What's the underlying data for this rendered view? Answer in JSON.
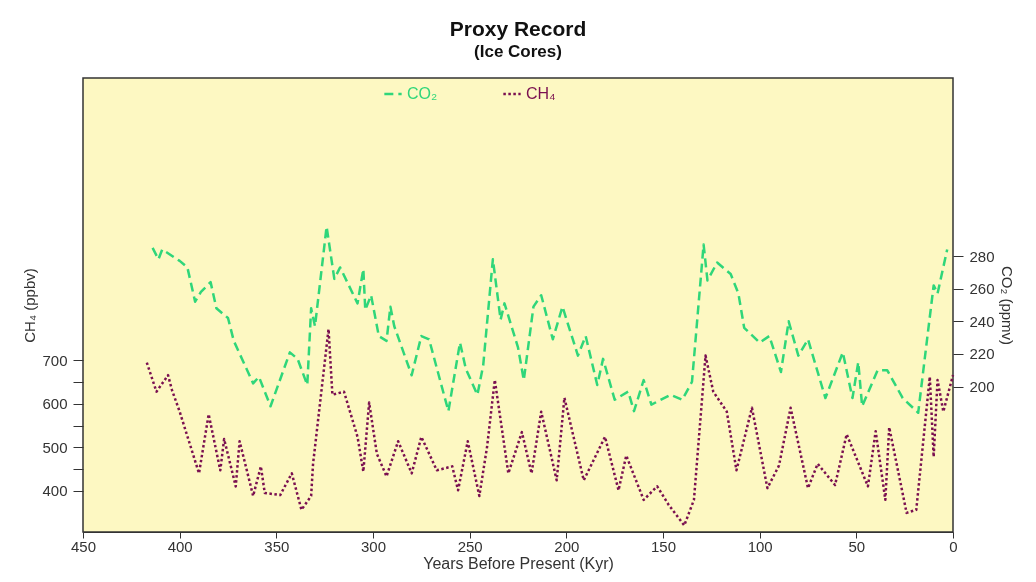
{
  "chart_data": {
    "type": "line",
    "title": "Proxy Record",
    "subtitle": "(Ice Cores)",
    "xlabel": "Years Before Present  (Kyr)",
    "ylabel": "CH₄ (ppbv)",
    "y2label": "CO₂ (ppmv)",
    "xlim": [
      450,
      0
    ],
    "xticks": [
      450,
      400,
      350,
      300,
      250,
      200,
      150,
      100,
      50,
      0
    ],
    "ylim": [
      305,
      1350
    ],
    "yticks": [
      400,
      {
        "value": 450,
        "label": null
      },
      500,
      {
        "value": 550,
        "label": null
      },
      600,
      {
        "value": 650,
        "label": null
      },
      700
    ],
    "y2lim": [
      111,
      389
    ],
    "y2ticks": [
      200,
      220,
      240,
      260,
      280
    ],
    "legend": "top",
    "grid": false,
    "series": [
      {
        "name": "CO₂",
        "color": "#2fd67a",
        "line_style": "dashed",
        "axis": "y2",
        "x": [
          414,
          411,
          409,
          400,
          396,
          392,
          389,
          384,
          381,
          375,
          372,
          362,
          359,
          353,
          343,
          339,
          334,
          332,
          330,
          324,
          320,
          317,
          308,
          305,
          304,
          301,
          297,
          293,
          291,
          289,
          280,
          275,
          271,
          261,
          255,
          252,
          246,
          243,
          238,
          234,
          232,
          225,
          222,
          217,
          213,
          207,
          202,
          194,
          190,
          184,
          181,
          175,
          168,
          165,
          160,
          156,
          146,
          140,
          135,
          129,
          127,
          122,
          115,
          111,
          108,
          100,
          95,
          89,
          85,
          80,
          75,
          66,
          57,
          52,
          49,
          47,
          39,
          34,
          26,
          18,
          13,
          10,
          8,
          3
        ],
        "values": [
          285,
          278,
          284,
          277,
          273,
          252,
          258,
          264,
          248,
          242,
          228,
          202,
          206,
          188,
          221,
          217,
          201,
          248,
          237,
          298,
          266,
          273,
          251,
          272,
          247,
          256,
          231,
          228,
          249,
          237,
          207,
          231,
          229,
          185,
          227,
          211,
          195,
          213,
          278,
          241,
          251,
          224,
          204,
          249,
          256,
          229,
          249,
          219,
          231,
          201,
          217,
          192,
          197,
          185,
          204,
          189,
          195,
          192,
          203,
          287,
          265,
          276,
          269,
          257,
          236,
          227,
          231,
          209,
          240,
          219,
          229,
          193,
          221,
          193,
          215,
          188,
          210,
          210,
          193,
          184,
          233,
          262,
          257,
          284
        ]
      },
      {
        "name": "CH₄",
        "color": "#7a1050",
        "line_style": "dotted",
        "axis": "y",
        "x": [
          417,
          412,
          406,
          404,
          400,
          390,
          385,
          379,
          377,
          371,
          369,
          362,
          358,
          356,
          348,
          342,
          337,
          332,
          331,
          323,
          321,
          315,
          308,
          305,
          302,
          298,
          293,
          287,
          280,
          275,
          267,
          259,
          256,
          251,
          245,
          241,
          237,
          230,
          223,
          218,
          213,
          205,
          201,
          191,
          180,
          173,
          169,
          160,
          153,
          147,
          139,
          134,
          128,
          124,
          117,
          112,
          104,
          96,
          90,
          84,
          75,
          70,
          61,
          55,
          44,
          40,
          35,
          33,
          24,
          19,
          12,
          10,
          8,
          5,
          0
        ],
        "values": [
          695,
          628,
          666,
          632,
          582,
          440,
          576,
          447,
          519,
          410,
          514,
          388,
          456,
          395,
          390,
          440,
          356,
          388,
          462,
          772,
          621,
          628,
          524,
          444,
          603,
          485,
          433,
          514,
          440,
          524,
          447,
          456,
          401,
          514,
          388,
          501,
          655,
          440,
          535,
          440,
          582,
          424,
          614,
          424,
          524,
          401,
          481,
          379,
          410,
          367,
          320,
          379,
          711,
          628,
          582,
          447,
          591,
          406,
          458,
          591,
          406,
          462,
          413,
          530,
          410,
          537,
          379,
          546,
          349,
          356,
          662,
          478,
          655,
          582,
          666
        ]
      }
    ]
  }
}
